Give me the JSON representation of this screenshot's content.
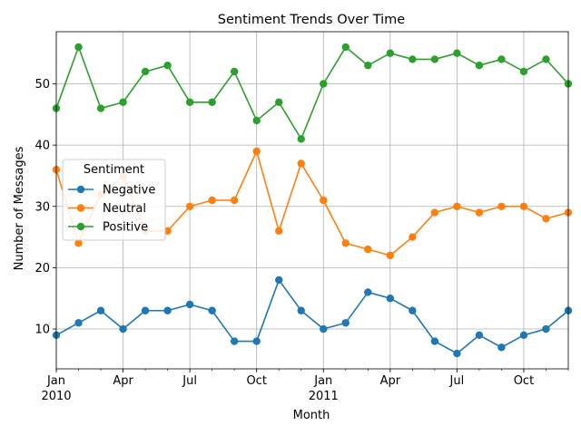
{
  "chart_data": {
    "type": "line",
    "title": "Sentiment Trends Over Time",
    "xlabel": "Month",
    "ylabel": "Number of Messages",
    "legend_title": "Sentiment",
    "legend_position": "center-left",
    "grid": true,
    "x": [
      "2010-01",
      "2010-02",
      "2010-03",
      "2010-04",
      "2010-05",
      "2010-06",
      "2010-07",
      "2010-08",
      "2010-09",
      "2010-10",
      "2010-11",
      "2010-12",
      "2011-01",
      "2011-02",
      "2011-03",
      "2011-04",
      "2011-05",
      "2011-06",
      "2011-07",
      "2011-08",
      "2011-09",
      "2011-10",
      "2011-11",
      "2011-12"
    ],
    "ylim": [
      3.5,
      58.5
    ],
    "y_ticks": [
      10,
      20,
      30,
      40,
      50
    ],
    "x_tick_labels": [
      {
        "month": "2010-01",
        "label": "Jan",
        "year": "2010"
      },
      {
        "month": "2010-04",
        "label": "Apr",
        "year": ""
      },
      {
        "month": "2010-07",
        "label": "Jul",
        "year": ""
      },
      {
        "month": "2010-10",
        "label": "Oct",
        "year": ""
      },
      {
        "month": "2011-01",
        "label": "Jan",
        "year": "2011"
      },
      {
        "month": "2011-04",
        "label": "Apr",
        "year": ""
      },
      {
        "month": "2011-07",
        "label": "Jul",
        "year": ""
      },
      {
        "month": "2011-10",
        "label": "Oct",
        "year": ""
      }
    ],
    "series": [
      {
        "name": "Negative",
        "color": "#1f77b4",
        "values": [
          9,
          11,
          13,
          10,
          13,
          13,
          14,
          13,
          8,
          8,
          18,
          13,
          10,
          11,
          16,
          15,
          13,
          8,
          6,
          9,
          7,
          9,
          10,
          13
        ]
      },
      {
        "name": "Neutral",
        "color": "#ff7f0e",
        "values": [
          36,
          24,
          32,
          35,
          26,
          26,
          30,
          31,
          31,
          39,
          26,
          37,
          31,
          24,
          23,
          22,
          25,
          29,
          30,
          29,
          30,
          30,
          28,
          29
        ]
      },
      {
        "name": "Positive",
        "color": "#2ca02c",
        "values": [
          46,
          56,
          46,
          47,
          52,
          53,
          47,
          47,
          52,
          44,
          47,
          41,
          50,
          56,
          53,
          55,
          54,
          54,
          55,
          53,
          54,
          52,
          54,
          50
        ]
      }
    ]
  }
}
